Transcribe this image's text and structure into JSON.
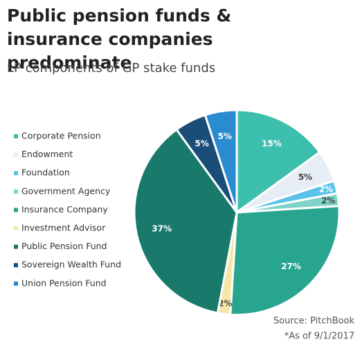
{
  "chart_data": {
    "type": "pie",
    "title": "Public pension funds & insurance companies predominate",
    "subtitle": "LP components of GP stake funds",
    "source": "Source: PitchBook",
    "note": "*As of 9/1/2017",
    "legend": "left",
    "categories": [
      "Corporate Pension",
      "Endowment",
      "Foundation",
      "Government Agency",
      "Insurance Company",
      "Investment Advisor",
      "Public Pension Fund",
      "Sovereign Wealth Fund",
      "Union Pension Fund"
    ],
    "values": [
      15,
      5,
      2,
      2,
      27,
      2,
      37,
      5,
      5
    ],
    "value_labels": [
      "15%",
      "5%",
      "2%",
      "2%",
      "27%",
      "2%",
      "37%",
      "5%",
      "5%"
    ],
    "colors": [
      "#3dbfad",
      "#e6edf4",
      "#5bc3ea",
      "#80d3c8",
      "#27a58e",
      "#f4e6a6",
      "#197a6c",
      "#1a4d78",
      "#2a8bd0"
    ]
  }
}
